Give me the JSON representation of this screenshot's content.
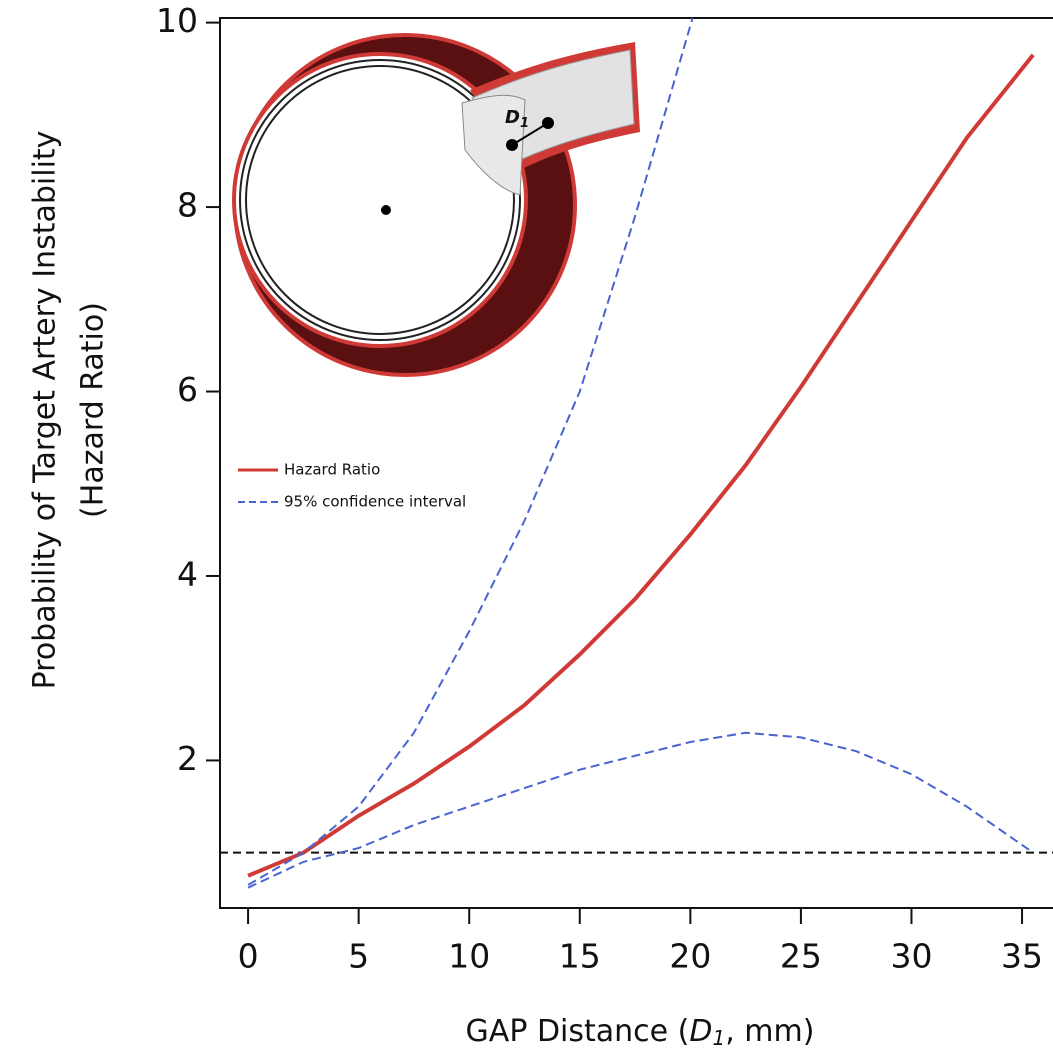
{
  "chart_data": {
    "type": "line",
    "ylabel": [
      "Probability of Target Artery Instability",
      "(Hazard Ratio)"
    ],
    "xlabel": [
      "GAP Distance (",
      "D",
      "1",
      ", mm)"
    ],
    "xlim": [
      -1.27,
      36.4
    ],
    "ylim": [
      0.4,
      10.05
    ],
    "xticks": [
      0,
      5,
      10,
      15,
      20,
      25,
      30,
      35
    ],
    "yticks": [
      2,
      4,
      6,
      8,
      10
    ],
    "hline": 1,
    "inset_label": [
      "D",
      "1"
    ],
    "series": [
      {
        "name": "Hazard Ratio",
        "color": "#d03a36",
        "dashed": false,
        "x": [
          0,
          2.5,
          5,
          7.5,
          10,
          12.5,
          15,
          17.5,
          20,
          22.5,
          25,
          27.5,
          30,
          32.5,
          35.5
        ],
        "values": [
          0.75,
          1.0,
          1.4,
          1.75,
          2.15,
          2.6,
          3.15,
          3.75,
          4.45,
          5.2,
          6.05,
          6.95,
          7.85,
          8.75,
          9.65
        ]
      },
      {
        "name": "95% confidence interval",
        "color": "#4a63d0",
        "dashed": true,
        "x": [
          0,
          2.5,
          5,
          7.5,
          10,
          12.5,
          15,
          17.5,
          20.1
        ],
        "values": [
          0.65,
          1.0,
          1.5,
          2.3,
          3.4,
          4.6,
          6.0,
          7.9,
          10.05
        ]
      },
      {
        "color": "#4a63d0",
        "dashed": true,
        "x": [
          0,
          2.5,
          5,
          7.5,
          10,
          12.5,
          15,
          17.5,
          20,
          22.5,
          25,
          27.5,
          30,
          32.5,
          35.5
        ],
        "values": [
          0.62,
          0.9,
          1.05,
          1.3,
          1.5,
          1.7,
          1.9,
          2.05,
          2.2,
          2.3,
          2.25,
          2.1,
          1.85,
          1.5,
          1.0
        ]
      }
    ]
  }
}
